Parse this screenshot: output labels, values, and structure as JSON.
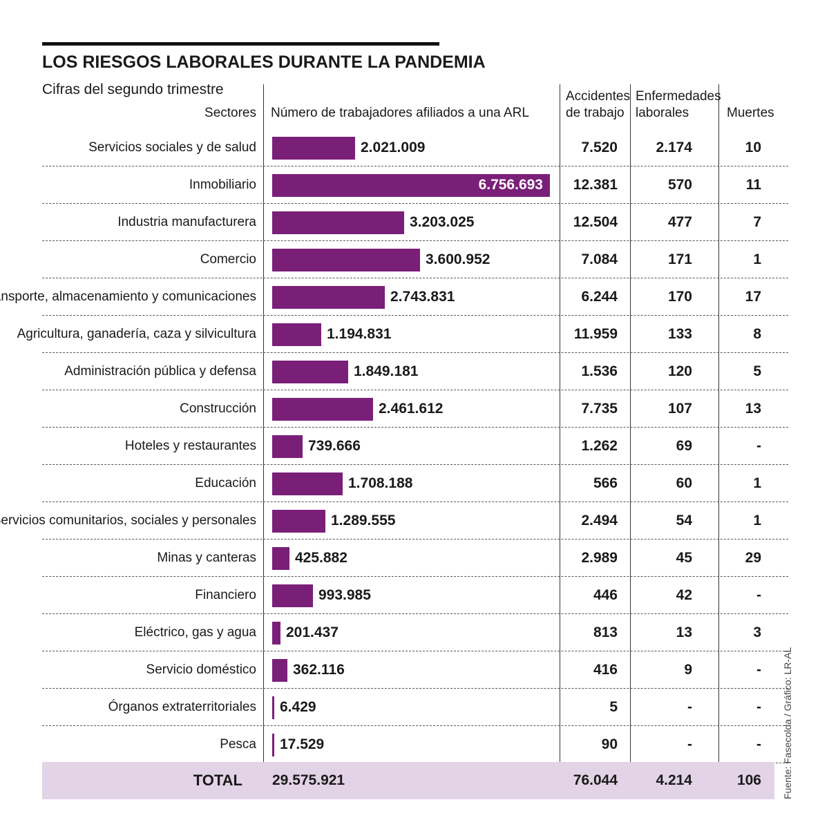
{
  "title": "LOS RIESGOS LABORALES DURANTE LA PANDEMIA",
  "subtitle": "Cifras del segundo trimestre",
  "headers": {
    "sectores": "Sectores",
    "afiliados": "Número de trabajadores afiliados a una ARL",
    "accidentes_1": "Accidentes",
    "accidentes_2": "de trabajo",
    "enfermedades_1": "Enfermedades",
    "enfermedades_2": "laborales",
    "muertes": "Muertes"
  },
  "colors": {
    "bar": "#7a1f78",
    "total_bg": "#e2d3e6"
  },
  "source": "Fuente: Fasecolda / Gráfico: LR-AL",
  "total": {
    "label": "TOTAL",
    "afiliados": "29.575.921",
    "accidentes": "76.044",
    "enfermedades": "4.214",
    "muertes": "106"
  },
  "chart_data": {
    "type": "bar",
    "orientation": "horizontal",
    "title": "LOS RIESGOS LABORALES DURANTE LA PANDEMIA",
    "subtitle": "Cifras del segundo trimestre",
    "xlabel": "Número de trabajadores afiliados a una ARL",
    "ylabel": "Sectores",
    "xlim": [
      0,
      6756693
    ],
    "rows": [
      {
        "sector": "Servicios sociales y de salud",
        "afiliados": 2021009,
        "afiliados_label": "2.021.009",
        "accidentes": "7.520",
        "enfermedades": "2.174",
        "muertes": "10"
      },
      {
        "sector": "Inmobiliario",
        "afiliados": 6756693,
        "afiliados_label": "6.756.693",
        "accidentes": "12.381",
        "enfermedades": "570",
        "muertes": "11"
      },
      {
        "sector": "Industria manufacturera",
        "afiliados": 3203025,
        "afiliados_label": "3.203.025",
        "accidentes": "12.504",
        "enfermedades": "477",
        "muertes": "7"
      },
      {
        "sector": "Comercio",
        "afiliados": 3600952,
        "afiliados_label": "3.600.952",
        "accidentes": "7.084",
        "enfermedades": "171",
        "muertes": "1"
      },
      {
        "sector": "Transporte, almacenamiento y comunicaciones",
        "afiliados": 2743831,
        "afiliados_label": "2.743.831",
        "accidentes": "6.244",
        "enfermedades": "170",
        "muertes": "17"
      },
      {
        "sector": "Agricultura, ganadería, caza y silvicultura",
        "afiliados": 1194831,
        "afiliados_label": "1.194.831",
        "accidentes": "11.959",
        "enfermedades": "133",
        "muertes": "8"
      },
      {
        "sector": "Administración pública y defensa",
        "afiliados": 1849181,
        "afiliados_label": "1.849.181",
        "accidentes": "1.536",
        "enfermedades": "120",
        "muertes": "5"
      },
      {
        "sector": "Construcción",
        "afiliados": 2461612,
        "afiliados_label": "2.461.612",
        "accidentes": "7.735",
        "enfermedades": "107",
        "muertes": "13"
      },
      {
        "sector": "Hoteles y restaurantes",
        "afiliados": 739666,
        "afiliados_label": "739.666",
        "accidentes": "1.262",
        "enfermedades": "69",
        "muertes": "-"
      },
      {
        "sector": "Educación",
        "afiliados": 1708188,
        "afiliados_label": "1.708.188",
        "accidentes": "566",
        "enfermedades": "60",
        "muertes": "1"
      },
      {
        "sector": "Servicios comunitarios, sociales y personales",
        "afiliados": 1289555,
        "afiliados_label": "1.289.555",
        "accidentes": "2.494",
        "enfermedades": "54",
        "muertes": "1"
      },
      {
        "sector": "Minas y canteras",
        "afiliados": 425882,
        "afiliados_label": "425.882",
        "accidentes": "2.989",
        "enfermedades": "45",
        "muertes": "29"
      },
      {
        "sector": "Financiero",
        "afiliados": 993985,
        "afiliados_label": "993.985",
        "accidentes": "446",
        "enfermedades": "42",
        "muertes": "-"
      },
      {
        "sector": "Eléctrico, gas y agua",
        "afiliados": 201437,
        "afiliados_label": "201.437",
        "accidentes": "813",
        "enfermedades": "13",
        "muertes": "3"
      },
      {
        "sector": "Servicio doméstico",
        "afiliados": 362116,
        "afiliados_label": "362.116",
        "accidentes": "416",
        "enfermedades": "9",
        "muertes": "-"
      },
      {
        "sector": "Órganos extraterritoriales",
        "afiliados": 6429,
        "afiliados_label": "6.429",
        "accidentes": "5",
        "enfermedades": "-",
        "muertes": "-"
      },
      {
        "sector": "Pesca",
        "afiliados": 17529,
        "afiliados_label": "17.529",
        "accidentes": "90",
        "enfermedades": "-",
        "muertes": "-"
      }
    ]
  }
}
